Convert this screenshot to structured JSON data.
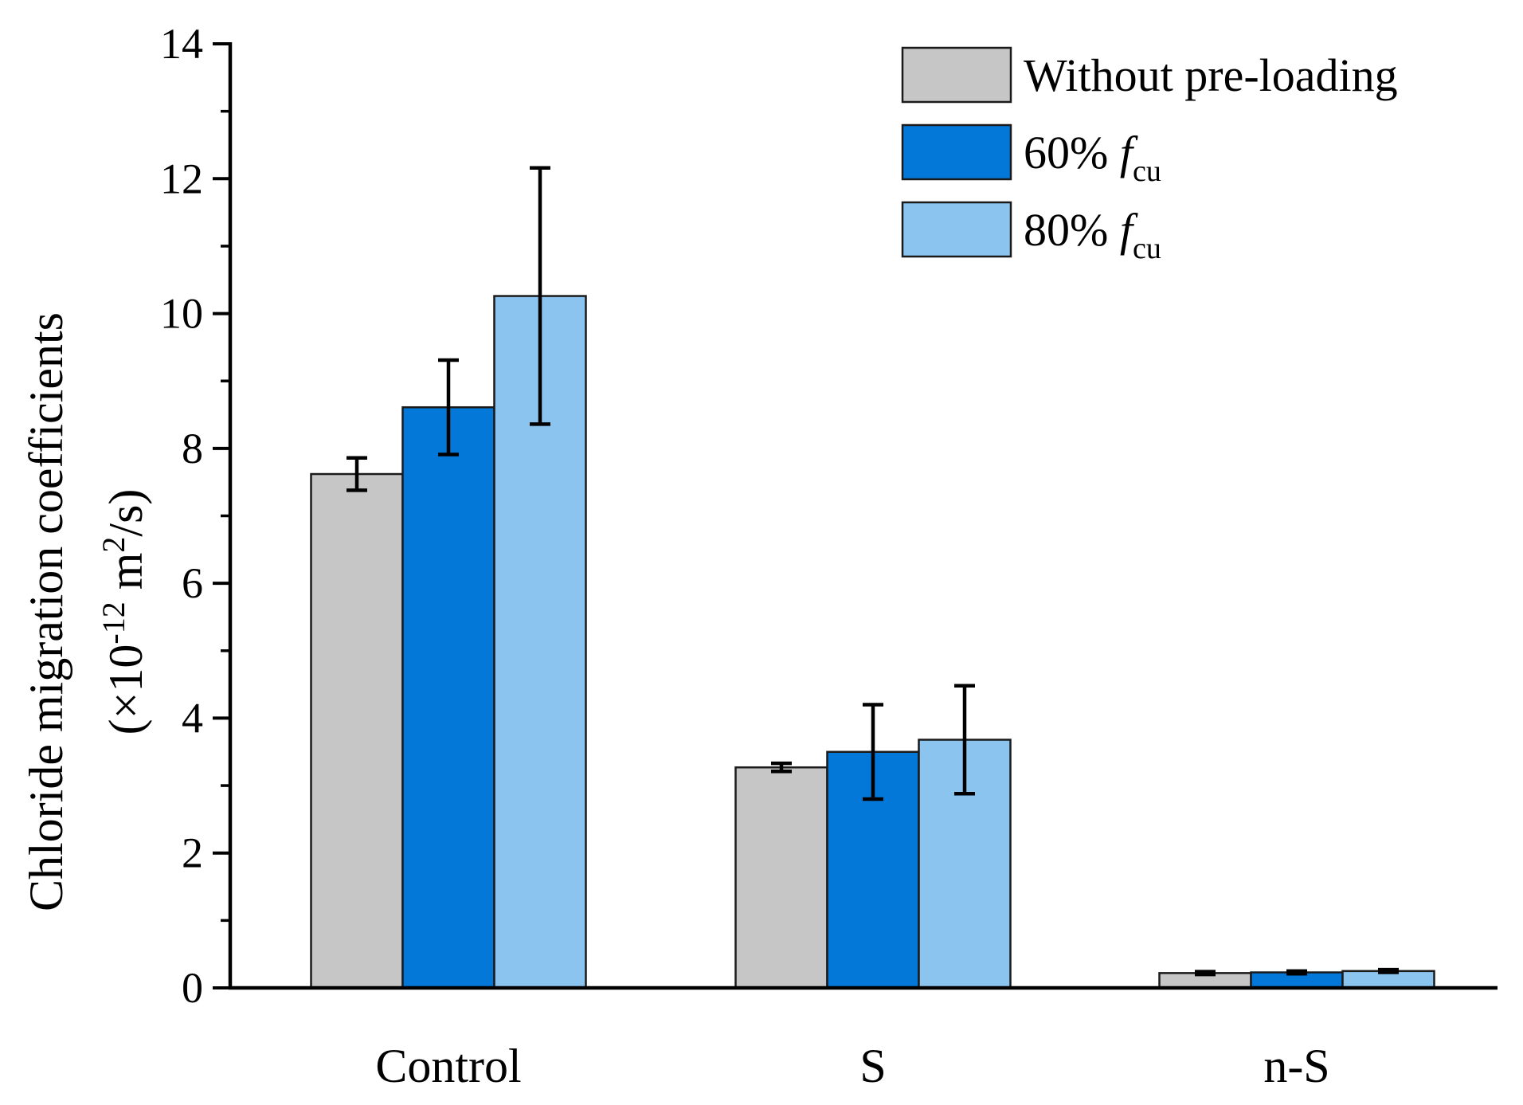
{
  "chart_data": {
    "type": "bar",
    "categories": [
      "Control",
      "S",
      "n-S"
    ],
    "series": [
      {
        "name": "Without pre-loading",
        "color": "#c6c6c6",
        "values": [
          7.62,
          3.27,
          0.22
        ],
        "errors": [
          0.24,
          0.06,
          0.02
        ]
      },
      {
        "name": "60% fcu",
        "name_prefix": "60% ",
        "name_italic": "f",
        "name_sub": "cu",
        "color": "#0478d8",
        "values": [
          8.61,
          3.5,
          0.23
        ],
        "errors": [
          0.7,
          0.7,
          0.02
        ]
      },
      {
        "name": "80% fcu",
        "name_prefix": "80% ",
        "name_italic": "f",
        "name_sub": "cu",
        "color": "#8cc4f0",
        "values": [
          10.26,
          3.68,
          0.25
        ],
        "errors": [
          1.9,
          0.8,
          0.02
        ]
      }
    ],
    "ylabel_line1": "Chloride migration coefficients",
    "ylabel_line2_pre": "(×10",
    "ylabel_line2_sup": "-12",
    "ylabel_line2_mid": " m",
    "ylabel_line2_sup2": "2",
    "ylabel_line2_post": "/s)",
    "ylim": [
      0,
      14
    ],
    "yticks": [
      "0",
      "2",
      "4",
      "6",
      "8",
      "10",
      "12",
      "14"
    ],
    "legend_position": "top-right",
    "grid": false
  }
}
